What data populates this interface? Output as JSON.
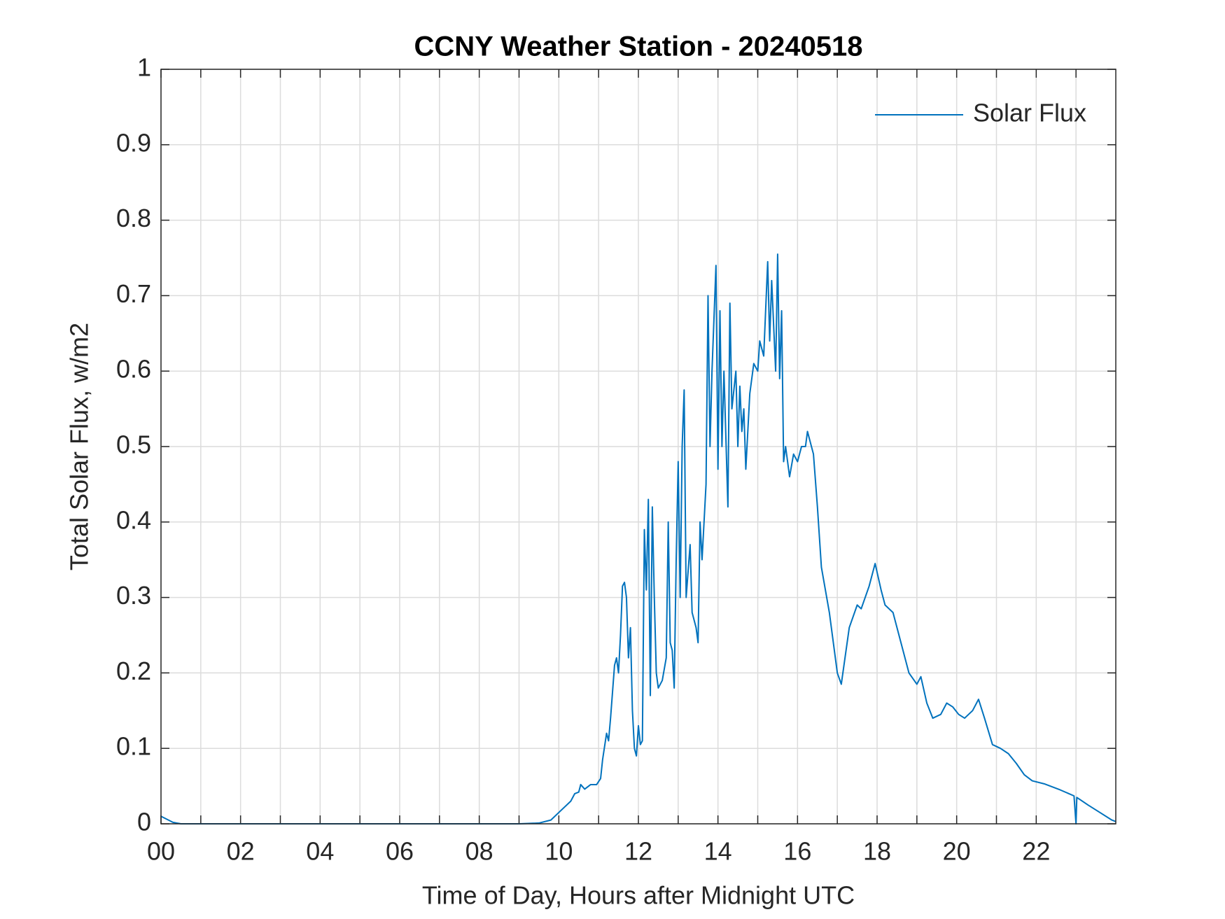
{
  "chart_data": {
    "type": "line",
    "title": "CCNY Weather Station - 20240518",
    "xlabel": "Time of Day, Hours after Midnight UTC",
    "ylabel": "Total Solar Flux, w/m2",
    "legend": "top-right",
    "grid": true,
    "xlim": [
      0,
      24
    ],
    "ylim": [
      0,
      1
    ],
    "xticks": [
      {
        "value": 0,
        "label": "00"
      },
      {
        "value": 2,
        "label": "02"
      },
      {
        "value": 4,
        "label": "04"
      },
      {
        "value": 6,
        "label": "06"
      },
      {
        "value": 8,
        "label": "08"
      },
      10,
      12,
      14,
      16,
      18,
      20,
      22
    ],
    "xminorticks": [
      1,
      3,
      5,
      7,
      9,
      11,
      13,
      15,
      17,
      19,
      21,
      23
    ],
    "yticks": [
      0,
      0.1,
      0.2,
      0.3,
      0.4,
      0.5,
      0.6,
      0.7,
      0.8,
      0.9,
      1
    ],
    "x": [
      0,
      0.3,
      0.5,
      9,
      9.5,
      9.8,
      10,
      10.3,
      10.4,
      10.5,
      10.55,
      10.65,
      10.8,
      10.95,
      11.05,
      11.1,
      11.2,
      11.25,
      11.3,
      11.4,
      11.45,
      11.5,
      11.55,
      11.6,
      11.65,
      11.7,
      11.75,
      11.8,
      11.85,
      11.9,
      11.95,
      12.0,
      12.05,
      12.1,
      12.15,
      12.2,
      12.25,
      12.3,
      12.35,
      12.4,
      12.45,
      12.5,
      12.6,
      12.7,
      12.75,
      12.8,
      12.85,
      12.9,
      12.95,
      13.0,
      13.05,
      13.1,
      13.15,
      13.2,
      13.3,
      13.35,
      13.45,
      13.5,
      13.55,
      13.6,
      13.7,
      13.75,
      13.8,
      13.85,
      13.95,
      14.0,
      14.05,
      14.1,
      14.15,
      14.25,
      14.3,
      14.35,
      14.45,
      14.5,
      14.55,
      14.6,
      14.65,
      14.7,
      14.8,
      14.9,
      15.0,
      15.05,
      15.15,
      15.25,
      15.3,
      15.35,
      15.45,
      15.5,
      15.55,
      15.6,
      15.65,
      15.7,
      15.8,
      15.9,
      16.0,
      16.1,
      16.2,
      16.25,
      16.35,
      16.4,
      16.5,
      16.6,
      16.8,
      17.0,
      17.1,
      17.3,
      17.5,
      17.6,
      17.8,
      17.95,
      18.1,
      18.2,
      18.4,
      18.6,
      18.8,
      19.0,
      19.1,
      19.25,
      19.4,
      19.6,
      19.75,
      19.9,
      20.05,
      20.2,
      20.4,
      20.55,
      20.7,
      20.9,
      21.1,
      21.3,
      21.5,
      21.7,
      21.9,
      22.2,
      22.6,
      22.95,
      23.0,
      23.02,
      23.3,
      23.6,
      23.9,
      24
    ],
    "series": [
      {
        "name": "Solar Flux",
        "color": "#0072bd",
        "values": [
          0.01,
          0.002,
          0,
          0,
          0.001,
          0.005,
          0.015,
          0.03,
          0.04,
          0.042,
          0.052,
          0.046,
          0.052,
          0.052,
          0.06,
          0.085,
          0.12,
          0.11,
          0.14,
          0.21,
          0.22,
          0.2,
          0.25,
          0.315,
          0.32,
          0.3,
          0.22,
          0.26,
          0.15,
          0.1,
          0.09,
          0.13,
          0.105,
          0.11,
          0.39,
          0.31,
          0.43,
          0.17,
          0.42,
          0.3,
          0.2,
          0.18,
          0.19,
          0.22,
          0.4,
          0.24,
          0.23,
          0.18,
          0.35,
          0.48,
          0.3,
          0.5,
          0.575,
          0.3,
          0.37,
          0.28,
          0.26,
          0.24,
          0.4,
          0.35,
          0.45,
          0.7,
          0.5,
          0.6,
          0.74,
          0.47,
          0.68,
          0.5,
          0.6,
          0.42,
          0.69,
          0.55,
          0.6,
          0.5,
          0.58,
          0.52,
          0.55,
          0.47,
          0.57,
          0.61,
          0.6,
          0.64,
          0.62,
          0.745,
          0.64,
          0.72,
          0.6,
          0.755,
          0.59,
          0.68,
          0.48,
          0.5,
          0.46,
          0.49,
          0.48,
          0.5,
          0.5,
          0.52,
          0.5,
          0.49,
          0.42,
          0.34,
          0.28,
          0.2,
          0.185,
          0.26,
          0.29,
          0.285,
          0.315,
          0.345,
          0.31,
          0.29,
          0.28,
          0.24,
          0.2,
          0.185,
          0.195,
          0.16,
          0.14,
          0.145,
          0.16,
          0.155,
          0.145,
          0.14,
          0.15,
          0.165,
          0.14,
          0.105,
          0.1,
          0.093,
          0.08,
          0.065,
          0.057,
          0.053,
          0.045,
          0.037,
          0,
          0.035,
          0.025,
          0.015,
          0.005,
          0.003
        ]
      }
    ]
  }
}
